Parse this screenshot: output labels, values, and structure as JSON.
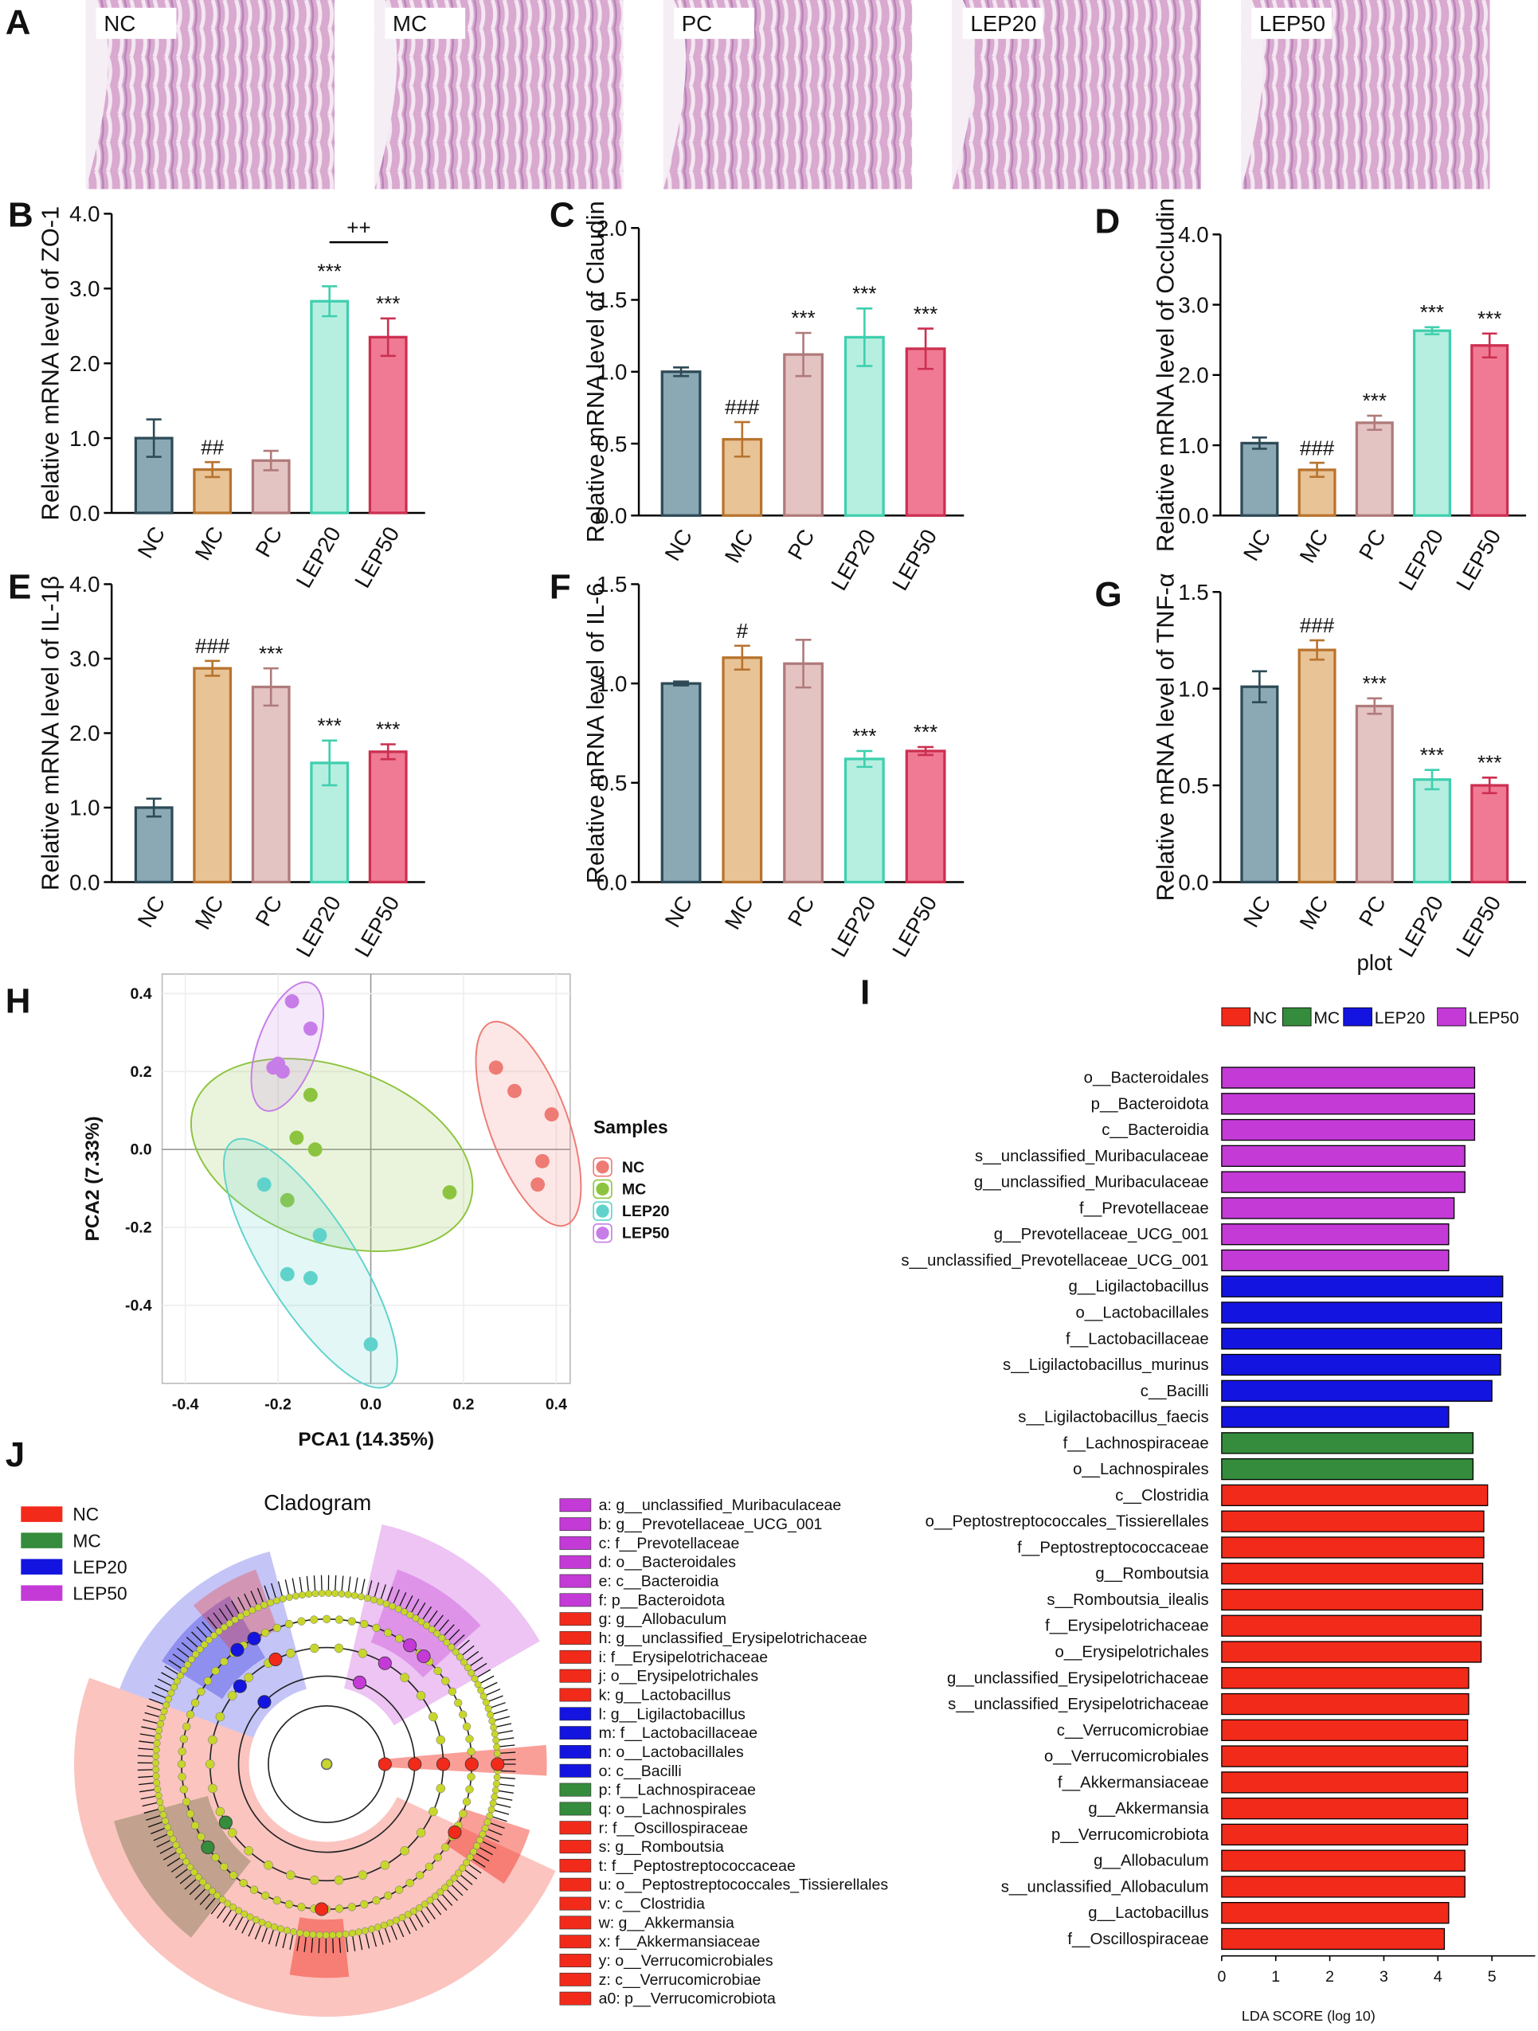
{
  "chart_data": [
    {
      "type": "image-grid",
      "panel": "A",
      "labels": [
        "NC",
        "MC",
        "PC",
        "LEP20",
        "LEP50"
      ]
    },
    {
      "type": "bar",
      "panel": "B",
      "ylabel": "Relative mRNA level of ZO-1",
      "categories": [
        "NC",
        "MC",
        "PC",
        "LEP20",
        "LEP50"
      ],
      "values": [
        1.0,
        0.58,
        0.7,
        2.83,
        2.35
      ],
      "errors": [
        0.25,
        0.1,
        0.13,
        0.2,
        0.25
      ],
      "annotations": [
        null,
        "##",
        null,
        "***",
        "***"
      ],
      "bracket": {
        "label": "++",
        "between": [
          "LEP20",
          "LEP50"
        ]
      },
      "colors": [
        "#8aa9b5",
        "#e8c396",
        "#e4c3c3",
        "#b6efe0",
        "#f07a94"
      ],
      "edge_colors": [
        "#2e4a57",
        "#b8732e",
        "#b07a7a",
        "#3fcfae",
        "#cc2f50"
      ],
      "ylim": [
        0,
        4
      ],
      "yticks": [
        {
          "value": 0,
          "label": "0.0"
        },
        {
          "value": 1,
          "label": "1.0"
        },
        {
          "value": 2,
          "label": "2.0"
        },
        {
          "value": 3,
          "label": "3.0"
        },
        {
          "value": 4,
          "label": "4.0"
        }
      ]
    },
    {
      "type": "bar",
      "panel": "C",
      "ylabel": "Relative mRNA level of Claudin",
      "categories": [
        "NC",
        "MC",
        "PC",
        "LEP20",
        "LEP50"
      ],
      "values": [
        1.0,
        0.53,
        1.12,
        1.24,
        1.16
      ],
      "errors": [
        0.03,
        0.12,
        0.15,
        0.2,
        0.14
      ],
      "annotations": [
        null,
        "###",
        "***",
        "***",
        "***"
      ],
      "colors": [
        "#8aa9b5",
        "#e8c396",
        "#e4c3c3",
        "#b6efe0",
        "#f07a94"
      ],
      "edge_colors": [
        "#2e4a57",
        "#b8732e",
        "#b07a7a",
        "#3fcfae",
        "#cc2f50"
      ],
      "ylim": [
        0,
        2
      ],
      "yticks": [
        {
          "value": 0,
          "label": "0.0"
        },
        0.5,
        {
          "value": 1,
          "label": "1.0"
        },
        1.5,
        {
          "value": 2,
          "label": "2.0"
        }
      ]
    },
    {
      "type": "bar",
      "panel": "D",
      "ylabel": "Relative mRNA level of Occludin",
      "categories": [
        "NC",
        "MC",
        "PC",
        "LEP20",
        "LEP50"
      ],
      "values": [
        1.03,
        0.65,
        1.32,
        2.63,
        2.42
      ],
      "errors": [
        0.08,
        0.1,
        0.1,
        0.05,
        0.17
      ],
      "annotations": [
        null,
        "###",
        "***",
        "***",
        "***"
      ],
      "colors": [
        "#8aa9b5",
        "#e8c396",
        "#e4c3c3",
        "#b6efe0",
        "#f07a94"
      ],
      "edge_colors": [
        "#2e4a57",
        "#b8732e",
        "#b07a7a",
        "#3fcfae",
        "#cc2f50"
      ],
      "ylim": [
        0,
        4
      ],
      "yticks": [
        {
          "value": 0,
          "label": "0.0"
        },
        {
          "value": 1,
          "label": "1.0"
        },
        {
          "value": 2,
          "label": "2.0"
        },
        {
          "value": 3,
          "label": "3.0"
        },
        {
          "value": 4,
          "label": "4.0"
        }
      ]
    },
    {
      "type": "bar",
      "panel": "E",
      "ylabel": "Relative mRNA level of IL-1β",
      "categories": [
        "NC",
        "MC",
        "PC",
        "LEP20",
        "LEP50"
      ],
      "values": [
        1.0,
        2.87,
        2.62,
        1.6,
        1.75
      ],
      "errors": [
        0.12,
        0.1,
        0.25,
        0.3,
        0.1
      ],
      "annotations": [
        null,
        "###",
        "***",
        "***",
        "***"
      ],
      "colors": [
        "#8aa9b5",
        "#e8c396",
        "#e4c3c3",
        "#b6efe0",
        "#f07a94"
      ],
      "edge_colors": [
        "#2e4a57",
        "#b8732e",
        "#b07a7a",
        "#3fcfae",
        "#cc2f50"
      ],
      "ylim": [
        0,
        4
      ],
      "yticks": [
        {
          "value": 0,
          "label": "0.0"
        },
        {
          "value": 1,
          "label": "1.0"
        },
        {
          "value": 2,
          "label": "2.0"
        },
        {
          "value": 3,
          "label": "3.0"
        },
        {
          "value": 4,
          "label": "4.0"
        }
      ]
    },
    {
      "type": "bar",
      "panel": "F",
      "ylabel": "Relative mRNA level of IL-6",
      "categories": [
        "NC",
        "MC",
        "PC",
        "LEP20",
        "LEP50"
      ],
      "values": [
        1.0,
        1.13,
        1.1,
        0.62,
        0.66
      ],
      "errors": [
        0.01,
        0.06,
        0.12,
        0.04,
        0.02
      ],
      "annotations": [
        null,
        "#",
        null,
        "***",
        "***"
      ],
      "colors": [
        "#8aa9b5",
        "#e8c396",
        "#e4c3c3",
        "#b6efe0",
        "#f07a94"
      ],
      "edge_colors": [
        "#2e4a57",
        "#b8732e",
        "#b07a7a",
        "#3fcfae",
        "#cc2f50"
      ],
      "ylim": [
        0,
        1.5
      ],
      "yticks": [
        {
          "value": 0,
          "label": "0.0"
        },
        0.5,
        {
          "value": 1,
          "label": "1.0"
        },
        1.5
      ]
    },
    {
      "type": "bar",
      "panel": "G",
      "ylabel": "Relative mRNA level of TNF-α",
      "xlabel": "plot",
      "categories": [
        "NC",
        "MC",
        "PC",
        "LEP20",
        "LEP50"
      ],
      "values": [
        1.01,
        1.2,
        0.91,
        0.53,
        0.5
      ],
      "errors": [
        0.08,
        0.05,
        0.04,
        0.05,
        0.04
      ],
      "annotations": [
        null,
        "###",
        "***",
        "***",
        "***"
      ],
      "colors": [
        "#8aa9b5",
        "#e8c396",
        "#e4c3c3",
        "#b6efe0",
        "#f07a94"
      ],
      "edge_colors": [
        "#2e4a57",
        "#b8732e",
        "#b07a7a",
        "#3fcfae",
        "#cc2f50"
      ],
      "ylim": [
        0,
        1.5
      ],
      "yticks": [
        {
          "value": 0,
          "label": "0.0"
        },
        0.5,
        {
          "value": 1,
          "label": "1.0"
        },
        1.5
      ]
    },
    {
      "type": "scatter",
      "panel": "H",
      "xlabel": "PCA1 (14.35%)",
      "ylabel": "PCA2 (7.33%)",
      "legend_title": "Samples",
      "xlim": [
        -0.45,
        0.43
      ],
      "ylim": [
        -0.6,
        0.45
      ],
      "xticks": [
        -0.4,
        -0.2,
        {
          "value": 0,
          "label": "0.0"
        },
        0.2,
        0.4
      ],
      "yticks": [
        -0.4,
        -0.2,
        {
          "value": 0,
          "label": "0.0"
        },
        0.2,
        0.4
      ],
      "series": [
        {
          "name": "NC",
          "color": "#ee7b74",
          "x": [
            0.27,
            0.31,
            0.39,
            0.37,
            0.36
          ],
          "values": [
            0.21,
            0.15,
            0.09,
            -0.03,
            -0.09
          ]
        },
        {
          "name": "MC",
          "color": "#8dc43f",
          "x": [
            -0.13,
            -0.16,
            -0.12,
            0.17,
            -0.18
          ],
          "values": [
            0.14,
            0.03,
            0.0,
            -0.11,
            -0.13
          ]
        },
        {
          "name": "LEP20",
          "color": "#5fd3cb",
          "x": [
            -0.23,
            -0.11,
            -0.18,
            -0.13,
            0.0
          ],
          "values": [
            -0.09,
            -0.22,
            -0.32,
            -0.33,
            -0.5
          ]
        },
        {
          "name": "LEP50",
          "color": "#c77de8",
          "x": [
            -0.17,
            -0.13,
            -0.21,
            -0.19,
            -0.2
          ],
          "values": [
            0.38,
            0.31,
            0.21,
            0.2,
            0.22
          ]
        }
      ]
    },
    {
      "type": "hbar",
      "panel": "I",
      "xlabel": "LDA SCORE (log 10)",
      "xlim": [
        0,
        5.8
      ],
      "xticks": [
        0,
        1,
        2,
        3,
        4,
        5
      ],
      "categories": [
        "o__Bacteroidales",
        "p__Bacteroidota",
        "c__Bacteroidia",
        "s__unclassified_Muribaculaceae",
        "g__unclassified_Muribaculaceae",
        "f__Prevotellaceae",
        "g__Prevotellaceae_UCG_001",
        "s__unclassified_Prevotellaceae_UCG_001",
        "g__Ligilactobacillus",
        "o__Lactobacillales",
        "f__Lactobacillaceae",
        "s__Ligilactobacillus_murinus",
        "c__Bacilli",
        "s__Ligilactobacillus_faecis",
        "f__Lachnospiraceae",
        "o__Lachnospirales",
        "c__Clostridia",
        "o__Peptostreptococcales_Tissierellales",
        "f__Peptostreptococcaceae",
        "g__Romboutsia",
        "s__Romboutsia_ilealis",
        "f__Erysipelotrichaceae",
        "o__Erysipelotrichales",
        "g__unclassified_Erysipelotrichaceae",
        "s__unclassified_Erysipelotrichaceae",
        "c__Verrucomicrobiae",
        "o__Verrucomicrobiales",
        "f__Akkermansiaceae",
        "g__Akkermansia",
        "p__Verrucomicrobiota",
        "g__Allobaculum",
        "s__unclassified_Allobaculum",
        "g__Lactobacillus",
        "f__Oscillospiraceae"
      ],
      "series": [
        {
          "name": "NC",
          "color": "#f22a1a",
          "values": [
            null,
            null,
            null,
            null,
            null,
            null,
            null,
            null,
            null,
            null,
            null,
            null,
            null,
            null,
            null,
            null,
            4.92,
            4.85,
            4.85,
            4.83,
            4.83,
            4.8,
            4.8,
            4.57,
            4.57,
            4.55,
            4.55,
            4.55,
            4.55,
            4.55,
            4.5,
            4.5,
            4.2,
            4.12
          ]
        },
        {
          "name": "MC",
          "color": "#358c3c",
          "values": [
            null,
            null,
            null,
            null,
            null,
            null,
            null,
            null,
            null,
            null,
            null,
            null,
            null,
            null,
            4.65,
            4.65,
            null,
            null,
            null,
            null,
            null,
            null,
            null,
            null,
            null,
            null,
            null,
            null,
            null,
            null,
            null,
            null,
            null,
            null
          ]
        },
        {
          "name": "LEP20",
          "color": "#1414e0",
          "values": [
            null,
            null,
            null,
            null,
            null,
            null,
            null,
            null,
            5.2,
            5.18,
            5.18,
            5.16,
            5.0,
            4.2,
            null,
            null,
            null,
            null,
            null,
            null,
            null,
            null,
            null,
            null,
            null,
            null,
            null,
            null,
            null,
            null,
            null,
            null,
            null,
            null
          ]
        },
        {
          "name": "LEP50",
          "color": "#c33ad6",
          "values": [
            4.68,
            4.68,
            4.68,
            4.5,
            4.5,
            4.3,
            4.2,
            4.2,
            null,
            null,
            null,
            null,
            null,
            null,
            null,
            null,
            null,
            null,
            null,
            null,
            null,
            null,
            null,
            null,
            null,
            null,
            null,
            null,
            null,
            null,
            null,
            null,
            null,
            null
          ]
        }
      ]
    },
    {
      "type": "cladogram",
      "panel": "J",
      "title": "Cladogram",
      "legend": [
        {
          "name": "NC",
          "color": "#f22a1a"
        },
        {
          "name": "MC",
          "color": "#358c3c"
        },
        {
          "name": "LEP20",
          "color": "#1414e0"
        },
        {
          "name": "LEP50",
          "color": "#c33ad6"
        }
      ],
      "key": [
        {
          "text": "a: g__unclassified_Muribaculaceae",
          "group": "LEP50"
        },
        {
          "text": "b: g__Prevotellaceae_UCG_001",
          "group": "LEP50"
        },
        {
          "text": "c: f__Prevotellaceae",
          "group": "LEP50"
        },
        {
          "text": "d: o__Bacteroidales",
          "group": "LEP50"
        },
        {
          "text": "e: c__Bacteroidia",
          "group": "LEP50"
        },
        {
          "text": "f: p__Bacteroidota",
          "group": "LEP50"
        },
        {
          "text": "g: g__Allobaculum",
          "group": "NC"
        },
        {
          "text": "h: g__unclassified_Erysipelotrichaceae",
          "group": "NC"
        },
        {
          "text": "i: f__Erysipelotrichaceae",
          "group": "NC"
        },
        {
          "text": "j: o__Erysipelotrichales",
          "group": "NC"
        },
        {
          "text": "k: g__Lactobacillus",
          "group": "NC"
        },
        {
          "text": "l: g__Ligilactobacillus",
          "group": "LEP20"
        },
        {
          "text": "m: f__Lactobacillaceae",
          "group": "LEP20"
        },
        {
          "text": "n: o__Lactobacillales",
          "group": "LEP20"
        },
        {
          "text": "o: c__Bacilli",
          "group": "LEP20"
        },
        {
          "text": "p: f__Lachnospiraceae",
          "group": "MC"
        },
        {
          "text": "q: o__Lachnospirales",
          "group": "MC"
        },
        {
          "text": "r: f__Oscillospiraceae",
          "group": "NC"
        },
        {
          "text": "s: g__Romboutsia",
          "group": "NC"
        },
        {
          "text": "t: f__Peptostreptococcaceae",
          "group": "NC"
        },
        {
          "text": "u: o__Peptostreptococcales_Tissierellales",
          "group": "NC"
        },
        {
          "text": "v: c__Clostridia",
          "group": "NC"
        },
        {
          "text": "w: g__Akkermansia",
          "group": "NC"
        },
        {
          "text": "x: f__Akkermansiaceae",
          "group": "NC"
        },
        {
          "text": "y: o__Verrucomicrobiales",
          "group": "NC"
        },
        {
          "text": "z: c__Verrucomicrobiae",
          "group": "NC"
        },
        {
          "text": "a0: p__Verrucomicrobiota",
          "group": "NC"
        }
      ]
    }
  ]
}
